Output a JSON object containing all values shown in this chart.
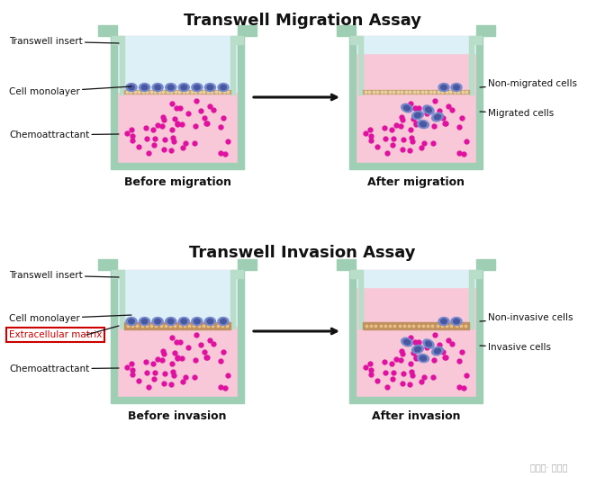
{
  "title_migration": "Transwell Migration Assay",
  "title_invasion": "Transwell Invasion Assay",
  "label_before_migration": "Before migration",
  "label_after_migration": "After migration",
  "label_before_invasion": "Before invasion",
  "label_after_invasion": "After invasion",
  "label_transwell_insert": "Transwell insert",
  "label_cell_monolayer": "Cell monolayer",
  "label_chemoattractant": "Chemoattractant",
  "label_extracellular_matrix": "Extracellular matrix",
  "label_non_migrated": "Non-migrated cells",
  "label_migrated": "Migrated cells",
  "label_non_invasive": "Non-invasive cells",
  "label_invasive": "Invasive cells",
  "color_bg": "#ffffff",
  "color_vessel_wall": "#9ecfb5",
  "color_insert_wall": "#b8ddc8",
  "color_liquid_top": "#ddf0f8",
  "color_liquid_pink": "#f8c8d8",
  "color_membrane": "#c8a070",
  "color_membrane_dots": "#e8d0a0",
  "color_ecm_base": "#c09060",
  "color_ecm_dots": "#e8c080",
  "color_cell": "#7888cc",
  "color_cell_dark": "#4858a0",
  "color_dot": "#e010a0",
  "color_arrow": "#111111",
  "watermark": "公众号· 生物屋"
}
